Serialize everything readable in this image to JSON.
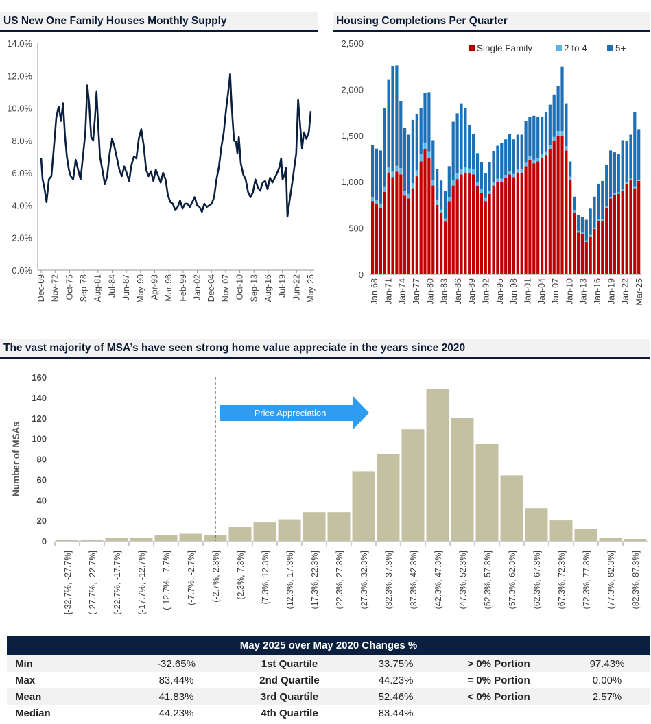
{
  "chart_data": [
    {
      "type": "line",
      "title": "US New One Family Houses Monthly Supply",
      "ylim": [
        0,
        14
      ],
      "yticks": [
        "0.0%",
        "2.0%",
        "4.0%",
        "6.0%",
        "8.0%",
        "10.0%",
        "12.0%",
        "14.0%"
      ],
      "x_tick_labels": [
        "Dec-69",
        "Nov-72",
        "Oct-75",
        "Sep-78",
        "Aug-81",
        "Jul-84",
        "Jun-87",
        "May-90",
        "Apr-93",
        "Mar-96",
        "Feb-99",
        "Jan-02",
        "Dec-04",
        "Nov-07",
        "Oct-10",
        "Sep-13",
        "Aug-16",
        "Jul-19",
        "Jun-22",
        "May-25"
      ],
      "series": [
        {
          "name": "Monthly Supply (%)",
          "x": [
            1969.9,
            1970.2,
            1970.6,
            1971.0,
            1971.5,
            1972.0,
            1972.5,
            1973.0,
            1973.5,
            1974.0,
            1974.4,
            1974.8,
            1975.2,
            1975.6,
            1976.0,
            1976.5,
            1977.0,
            1977.5,
            1978.0,
            1978.5,
            1979.0,
            1979.4,
            1979.8,
            1980.2,
            1980.6,
            1981.0,
            1981.3,
            1981.6,
            1982.0,
            1982.5,
            1983.0,
            1983.5,
            1984.0,
            1984.5,
            1985.0,
            1985.5,
            1986.0,
            1986.5,
            1987.0,
            1987.5,
            1988.0,
            1988.5,
            1989.0,
            1989.5,
            1990.0,
            1990.5,
            1991.0,
            1991.5,
            1992.0,
            1992.5,
            1993.0,
            1993.5,
            1994.0,
            1994.5,
            1995.0,
            1995.5,
            1996.0,
            1996.5,
            1997.0,
            1997.5,
            1998.0,
            1998.5,
            1999.0,
            1999.5,
            2000.0,
            2000.5,
            2001.0,
            2001.5,
            2002.0,
            2002.5,
            2003.0,
            2003.5,
            2004.0,
            2004.5,
            2005.0,
            2005.5,
            2006.0,
            2006.5,
            2007.0,
            2007.5,
            2008.0,
            2008.5,
            2008.8,
            2009.0,
            2009.3,
            2009.6,
            2010.0,
            2010.3,
            2010.6,
            2011.0,
            2011.5,
            2012.0,
            2012.5,
            2013.0,
            2013.5,
            2014.0,
            2014.5,
            2015.0,
            2015.5,
            2016.0,
            2016.5,
            2017.0,
            2017.5,
            2018.0,
            2018.5,
            2019.0,
            2019.3,
            2019.6,
            2020.0,
            2020.3,
            2020.6,
            2021.0,
            2021.5,
            2022.0,
            2022.4,
            2022.8,
            2023.2,
            2023.6,
            2024.0,
            2024.5,
            2025.0,
            2025.4
          ],
          "values": [
            6.9,
            5.6,
            5.0,
            4.2,
            5.6,
            5.8,
            7.5,
            9.4,
            10.1,
            9.2,
            10.3,
            8.3,
            7.0,
            6.2,
            5.8,
            5.6,
            6.8,
            6.2,
            5.6,
            7.0,
            8.5,
            11.4,
            10.2,
            8.2,
            8.0,
            9.5,
            11.0,
            9.2,
            7.0,
            6.2,
            5.3,
            5.8,
            7.2,
            8.1,
            7.6,
            6.9,
            6.2,
            5.8,
            6.4,
            6.0,
            5.5,
            6.5,
            7.0,
            6.9,
            8.1,
            8.7,
            7.7,
            6.2,
            5.8,
            6.1,
            5.5,
            6.2,
            5.8,
            5.4,
            6.0,
            5.6,
            4.6,
            4.2,
            4.1,
            3.7,
            3.9,
            4.3,
            3.8,
            4.1,
            4.1,
            3.9,
            4.2,
            4.5,
            4.0,
            3.9,
            3.6,
            4.1,
            3.9,
            4.0,
            4.1,
            4.5,
            5.6,
            6.4,
            7.6,
            8.5,
            10.0,
            11.2,
            12.1,
            10.8,
            9.3,
            8.0,
            7.9,
            7.2,
            8.2,
            6.6,
            5.9,
            5.6,
            4.8,
            4.5,
            4.8,
            5.6,
            5.1,
            4.9,
            5.4,
            5.5,
            5.0,
            5.7,
            5.4,
            5.7,
            6.0,
            6.4,
            6.9,
            5.6,
            5.9,
            6.3,
            3.3,
            4.2,
            5.2,
            6.3,
            7.2,
            10.5,
            9.0,
            7.5,
            8.5,
            8.1,
            8.5,
            9.8
          ]
        }
      ]
    },
    {
      "type": "bar",
      "stacked": true,
      "title": "Housing Completions Per Quarter",
      "ylim": [
        0,
        2500
      ],
      "yticks": [
        "0",
        "500",
        "1,000",
        "1,500",
        "2,000",
        "2,500"
      ],
      "x_tick_labels": [
        "Jan-68",
        "Jan-71",
        "Jan-74",
        "Jan-77",
        "Jan-80",
        "Jan-83",
        "Jan-86",
        "Jan-89",
        "Jan-92",
        "Jan-95",
        "Jan-98",
        "Jan-01",
        "Jan-04",
        "Jan-07",
        "Jan-10",
        "Jan-13",
        "Jan-16",
        "Jan-19",
        "Jan-22",
        "Mar-25"
      ],
      "legend": [
        "Single Family",
        "2 to 4",
        "5+"
      ],
      "colors": [
        "#c00000",
        "#5ab4e8",
        "#1f6fb5"
      ],
      "series": [
        {
          "name": "Single Family",
          "values": [
            790,
            760,
            720,
            890,
            1100,
            1050,
            1110,
            1080,
            850,
            820,
            930,
            1060,
            1220,
            1350,
            1260,
            960,
            750,
            660,
            570,
            790,
            960,
            1030,
            1080,
            1100,
            1090,
            1080,
            950,
            880,
            790,
            870,
            960,
            1000,
            1000,
            1040,
            1080,
            1050,
            1100,
            1100,
            1170,
            1240,
            1200,
            1220,
            1260,
            1290,
            1350,
            1440,
            1500,
            1500,
            1340,
            1020,
            670,
            450,
            430,
            350,
            410,
            490,
            580,
            580,
            720,
            820,
            860,
            870,
            900,
            980,
            1020,
            930,
            1010
          ]
        },
        {
          "name": "2 to 4",
          "values": [
            40,
            45,
            45,
            55,
            60,
            60,
            65,
            70,
            55,
            50,
            55,
            65,
            80,
            75,
            70,
            55,
            50,
            40,
            35,
            45,
            55,
            60,
            60,
            55,
            55,
            55,
            45,
            40,
            35,
            35,
            35,
            35,
            35,
            35,
            35,
            35,
            35,
            35,
            35,
            40,
            40,
            40,
            40,
            40,
            45,
            45,
            50,
            50,
            45,
            35,
            25,
            20,
            20,
            15,
            15,
            15,
            15,
            15,
            15,
            15,
            15,
            15,
            15,
            15,
            15,
            15,
            15
          ]
        },
        {
          "name": "5+",
          "values": [
            570,
            555,
            575,
            855,
            950,
            1145,
            1085,
            720,
            675,
            640,
            685,
            605,
            500,
            535,
            640,
            435,
            335,
            315,
            295,
            335,
            635,
            650,
            710,
            645,
            465,
            385,
            315,
            290,
            265,
            305,
            340,
            355,
            385,
            385,
            405,
            375,
            375,
            375,
            455,
            420,
            475,
            445,
            405,
            420,
            440,
            460,
            490,
            700,
            465,
            165,
            145,
            175,
            170,
            225,
            285,
            335,
            385,
            415,
            445,
            505,
            445,
            415,
            535,
            445,
            475,
            810,
            545
          ]
        }
      ]
    },
    {
      "type": "bar",
      "title": "The vast majority of MSA’s have seen strong home value appreciate in the years since 2020",
      "ylabel": "Number of MSAs",
      "ylim": [
        0,
        160
      ],
      "yticks": [
        "0",
        "20",
        "40",
        "60",
        "80",
        "100",
        "120",
        "140",
        "160"
      ],
      "annotation": "Price Appreciation",
      "categories": [
        "[-32.7%, -27.7%]",
        "(-27.7%, -22.7%]",
        "(-22.7%, -17.7%]",
        "(-17.7%, -12.7%]",
        "(-12.7%, -7.7%]",
        "(-7.7%, -2.7%]",
        "(-2.7%, 2.3%]",
        "(2.3%, 7.3%]",
        "(7.3%, 12.3%]",
        "(12.3%, 17.3%]",
        "(17.3%, 22.3%]",
        "(22.3%, 27.3%]",
        "(27.3%, 32.3%]",
        "(32.3%, 37.3%]",
        "(37.3%, 42.3%]",
        "(42.3%, 47.3%]",
        "(47.3%, 52.3%]",
        "(52.3%, 57.3%]",
        "(57.3%, 62.3%]",
        "(62.3%, 67.3%]",
        "(67.3%, 72.3%]",
        "(72.3%, 77.3%]",
        "(77.3%, 82.3%]",
        "(82.3%, 87.3%]"
      ],
      "values": [
        1,
        1,
        3,
        3,
        6,
        7,
        6,
        14,
        18,
        21,
        28,
        28,
        68,
        85,
        109,
        148,
        120,
        95,
        64,
        32,
        20,
        12,
        3,
        2
      ],
      "bar_color": "#c4c1a2"
    }
  ],
  "stats_table": {
    "title": "May 2025 over May 2020 Changes %",
    "rows": [
      {
        "label": "Min",
        "value": "-32.65%",
        "q_label": "1st Quartile",
        "q_value": "33.75%",
        "p_label": "> 0% Portion",
        "p_value": "97.43%"
      },
      {
        "label": "Max",
        "value": "83.44%",
        "q_label": "2nd Quartile",
        "q_value": "44.23%",
        "p_label": "= 0% Portion",
        "p_value": "0.00%"
      },
      {
        "label": "Mean",
        "value": "41.83%",
        "q_label": "3rd Quartile",
        "q_value": "52.46%",
        "p_label": "< 0% Portion",
        "p_value": "2.57%"
      },
      {
        "label": "Median",
        "value": "44.23%",
        "q_label": "4th Quartile",
        "q_value": "83.44%",
        "p_label": "",
        "p_value": ""
      }
    ]
  }
}
